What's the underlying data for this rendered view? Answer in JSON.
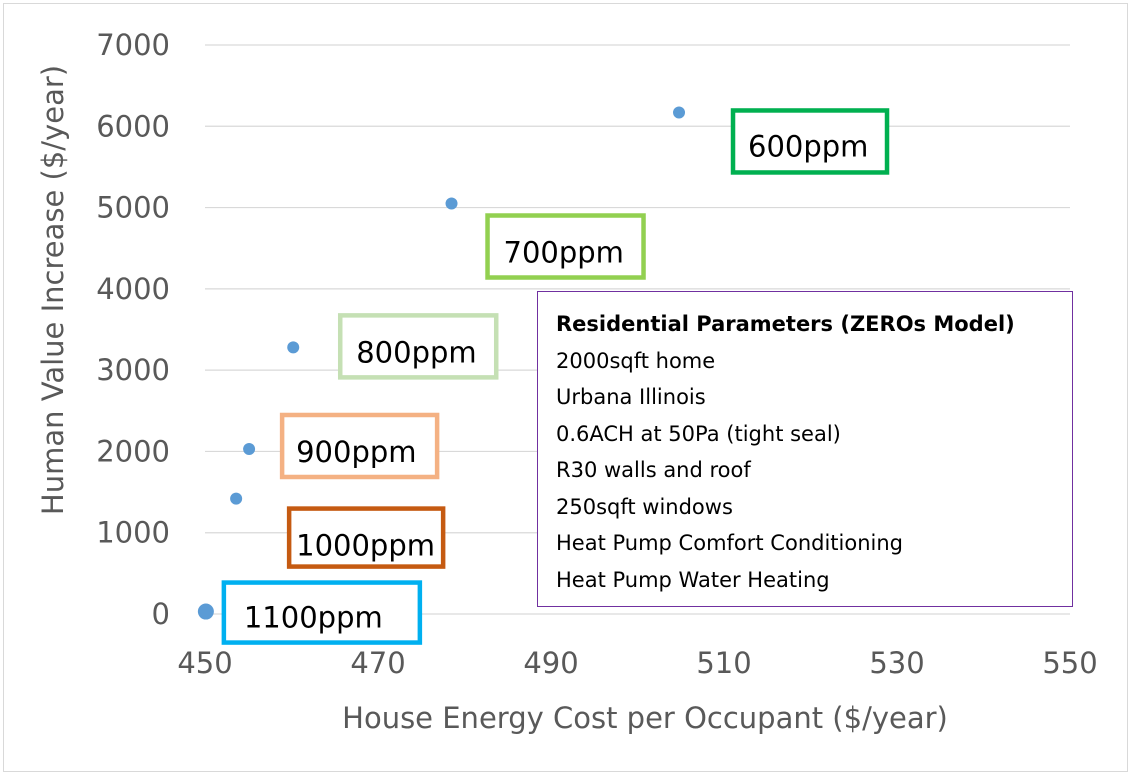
{
  "chart_data": {
    "type": "scatter",
    "title": "",
    "xlabel": "House Energy Cost per Occupant ($/year)",
    "ylabel": "Human Value Increase ($/year)",
    "xlim": [
      450,
      550
    ],
    "ylim": [
      0,
      7000
    ],
    "xticks": [
      "450",
      "470",
      "490",
      "510",
      "530",
      "550"
    ],
    "yticks": [
      "0",
      "1000",
      "2000",
      "3000",
      "4000",
      "5000",
      "6000",
      "7000"
    ],
    "grid": "horizontal",
    "marker_color": "#5b9bd5",
    "points": [
      {
        "x": 450.1,
        "y": 30,
        "label": "1100ppm",
        "box_color": "#00b0f0"
      },
      {
        "x": 453.6,
        "y": 1420,
        "label": "1000ppm",
        "box_color": "#c55a11"
      },
      {
        "x": 455.1,
        "y": 2030,
        "label": "900ppm",
        "box_color": "#f4b183"
      },
      {
        "x": 460.2,
        "y": 3280,
        "label": "800ppm",
        "box_color": "#c5e0b4"
      },
      {
        "x": 478.5,
        "y": 5050,
        "label": "700ppm",
        "box_color": "#92d050"
      },
      {
        "x": 504.8,
        "y": 6170,
        "label": "600ppm",
        "box_color": "#00b050"
      }
    ],
    "annotation": {
      "heading": "Residential Parameters (ZEROs Model)",
      "lines": [
        "2000sqft home",
        "Urbana Illinois",
        "0.6ACH at 50Pa (tight seal)",
        "R30 walls and roof",
        "250sqft windows",
        "Heat Pump Comfort Conditioning",
        "Heat Pump Water Heating"
      ],
      "border_color": "#7030a0"
    }
  }
}
